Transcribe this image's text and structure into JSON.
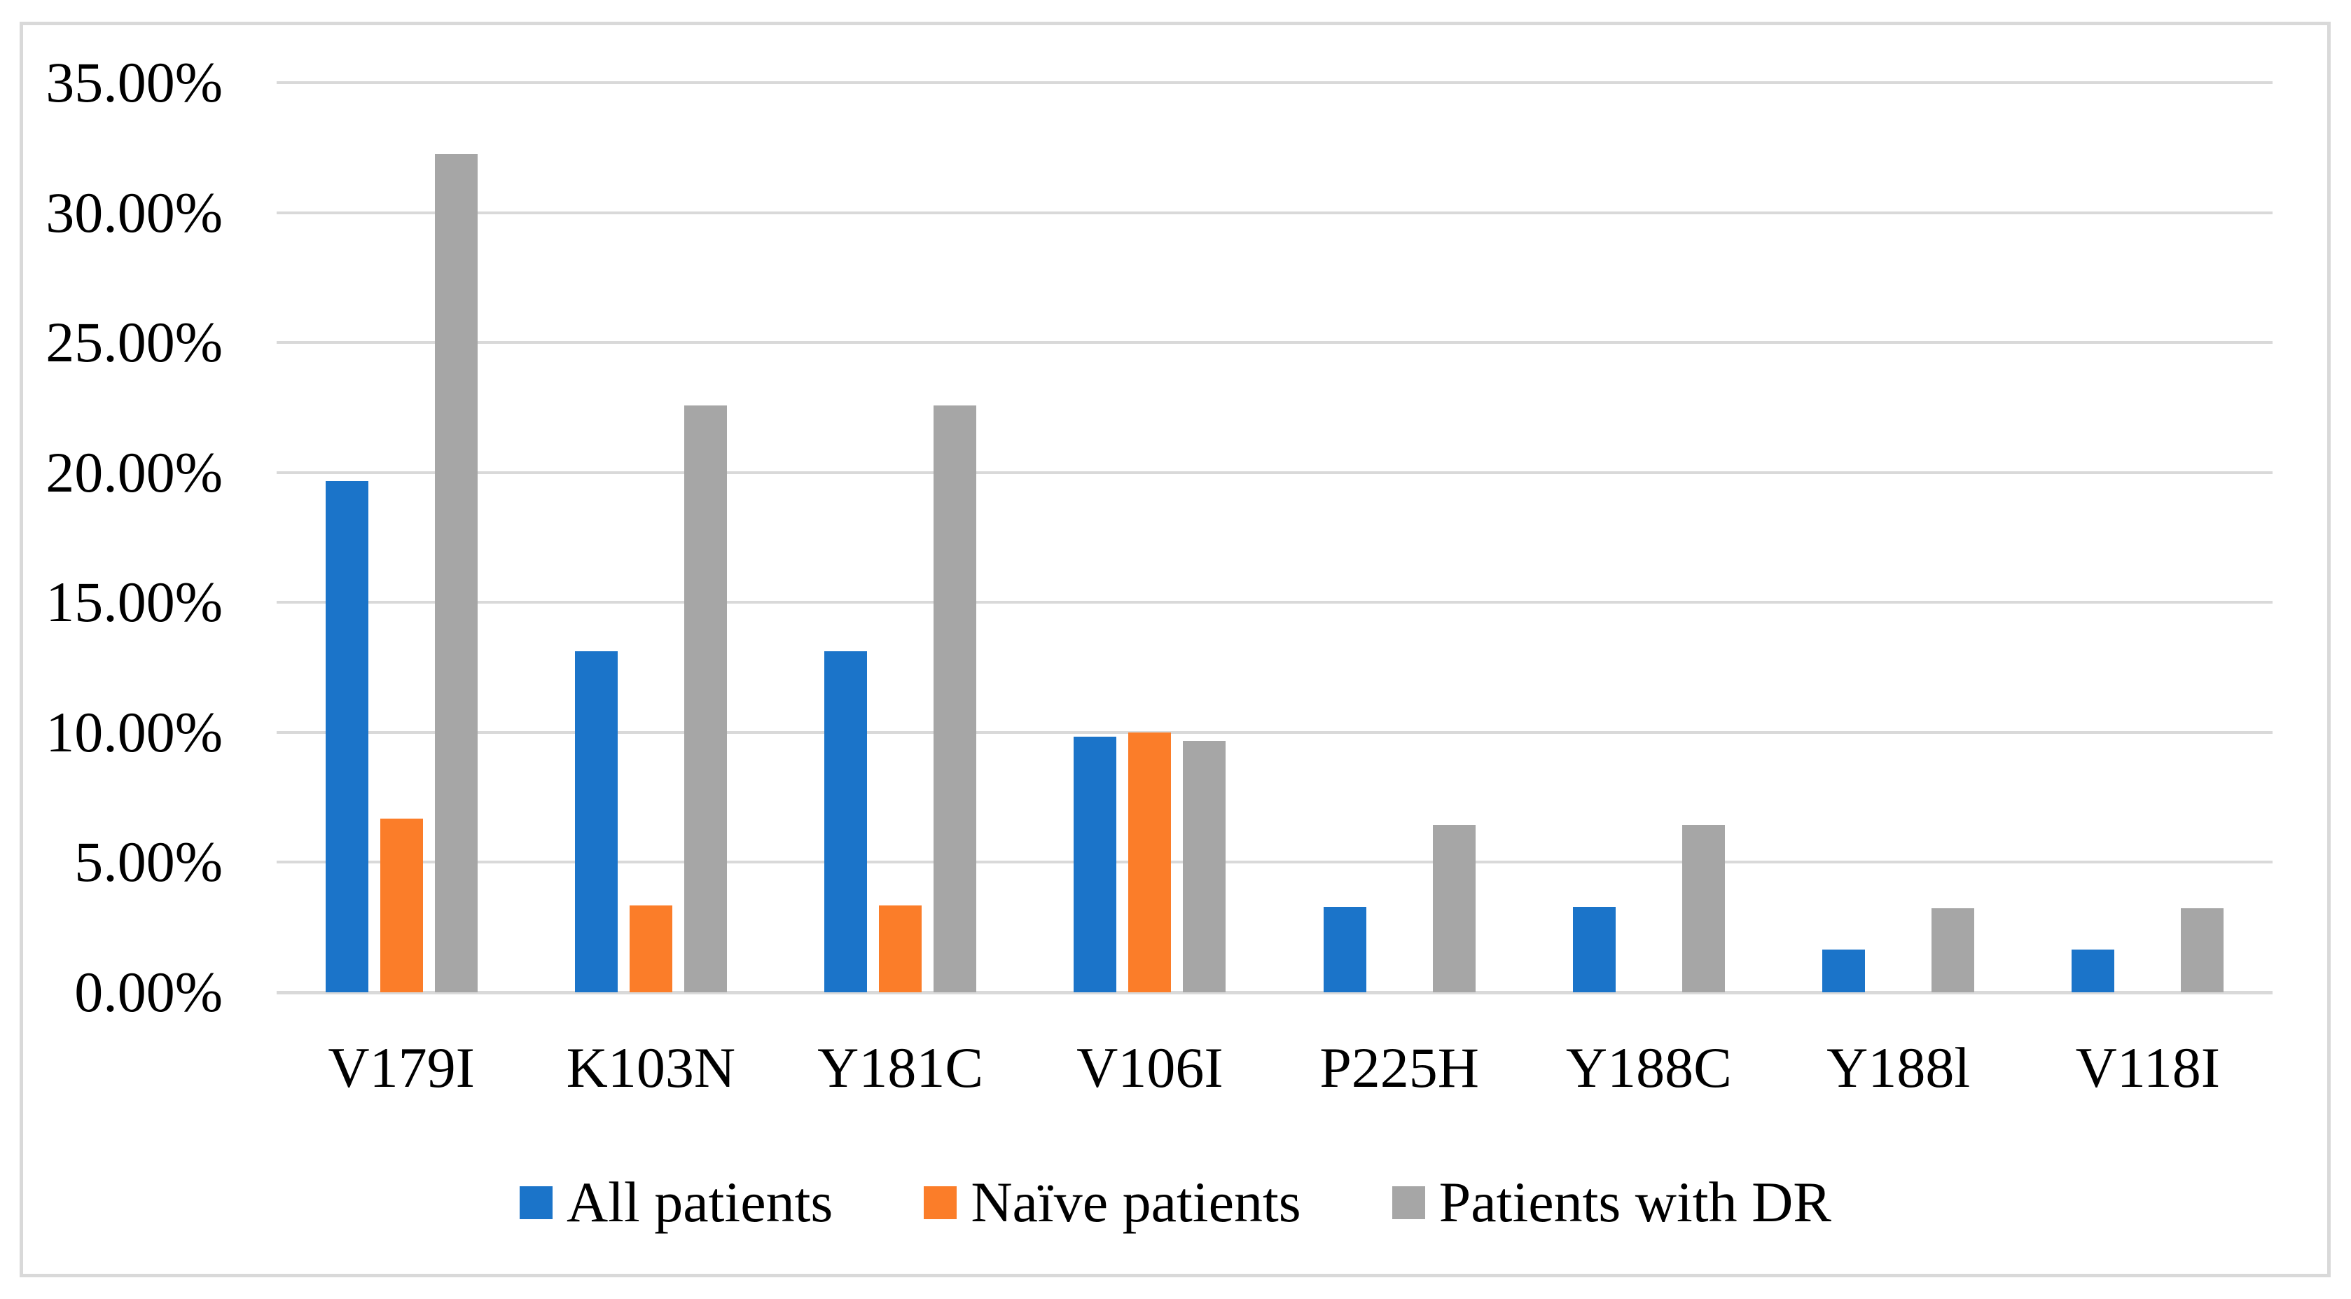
{
  "figure": {
    "background": "#ffffff",
    "border_color": "#d9d9d9"
  },
  "chart_data": {
    "type": "bar",
    "title": "",
    "xlabel": "",
    "ylabel": "",
    "categories": [
      "V179I",
      "K103N",
      "Y181C",
      "V106I",
      "P225H",
      "Y188C",
      "Y188l",
      "V118I"
    ],
    "series": [
      {
        "name": "All patients",
        "color": "#1b74c9",
        "values": [
          19.67,
          13.11,
          13.11,
          9.84,
          3.28,
          3.28,
          1.64,
          1.64
        ]
      },
      {
        "name": "Naïve patients",
        "color": "#fb7d29",
        "values": [
          6.67,
          3.33,
          3.33,
          10.0,
          0,
          0,
          0,
          0
        ]
      },
      {
        "name": "Patients with DR",
        "color": "#a6a6a6",
        "values": [
          32.26,
          22.58,
          22.58,
          9.68,
          6.45,
          6.45,
          3.23,
          3.23
        ]
      }
    ],
    "ylim": [
      0,
      35
    ],
    "ytick_step": 5,
    "ytick_labels": [
      "0.00%",
      "5.00%",
      "10.00%",
      "15.00%",
      "20.00%",
      "25.00%",
      "30.00%",
      "35.00%"
    ],
    "grid": true,
    "gridline_color": "#d9d9d9",
    "axis_line_color": "#d9d9d9",
    "legend_position": "bottom"
  }
}
